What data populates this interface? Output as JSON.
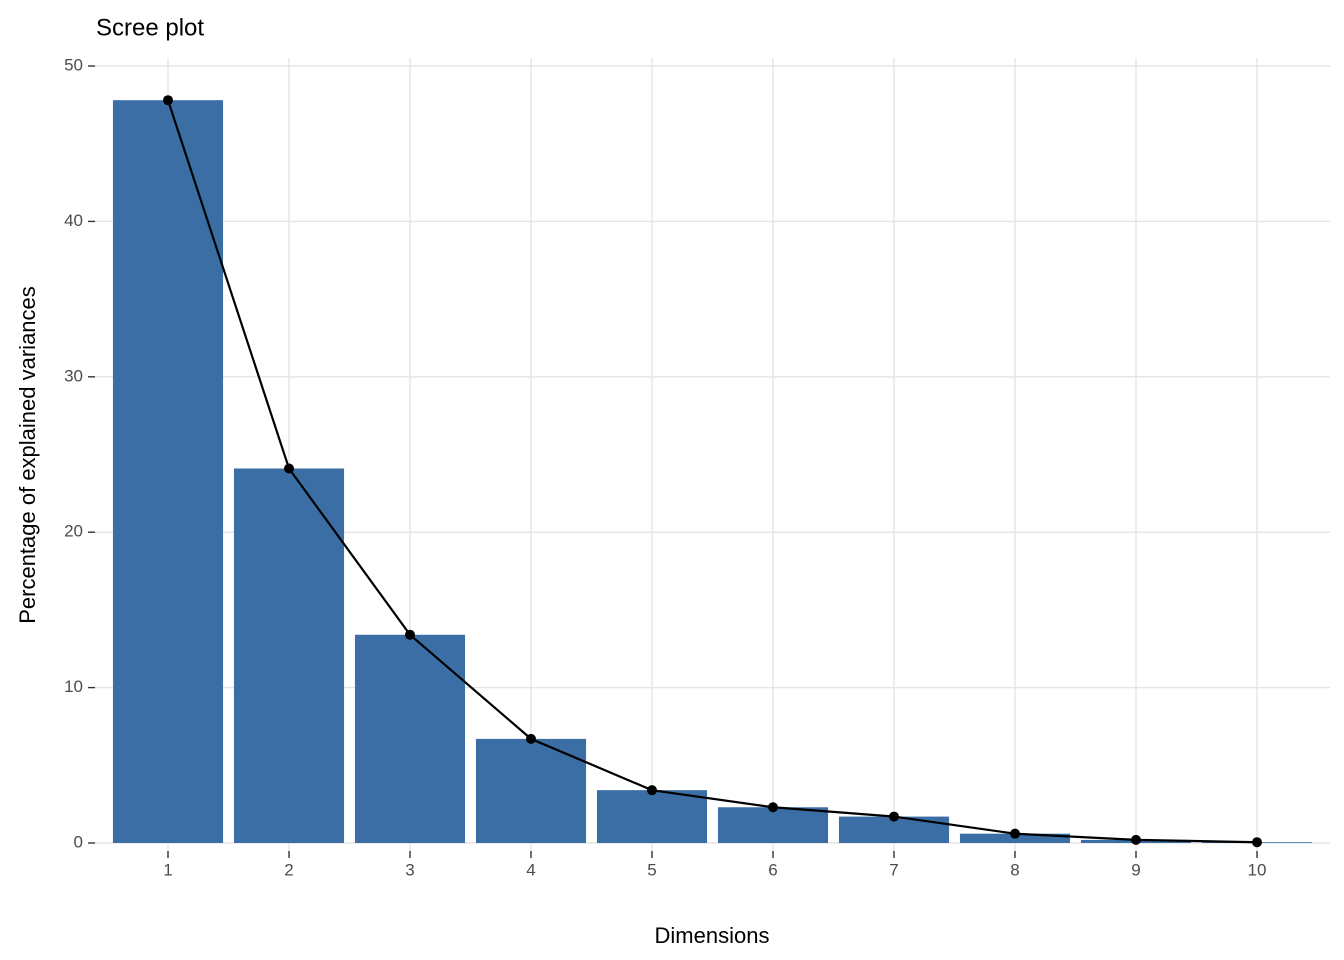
{
  "chart_data": {
    "type": "bar",
    "title": "Scree plot",
    "x_label": "Dimensions",
    "y_label": "Percentage of explained variances",
    "categories": [
      "1",
      "2",
      "3",
      "4",
      "5",
      "6",
      "7",
      "8",
      "9",
      "10"
    ],
    "values": [
      47.8,
      24.1,
      13.4,
      6.7,
      3.4,
      2.3,
      1.7,
      0.6,
      0.2,
      0.05
    ],
    "color": "#3a6ea5",
    "line": true,
    "line_color": "#000000",
    "ylim": [
      0,
      50
    ],
    "yticks": [
      0,
      10,
      20,
      30,
      40,
      50
    ],
    "grid": true
  }
}
